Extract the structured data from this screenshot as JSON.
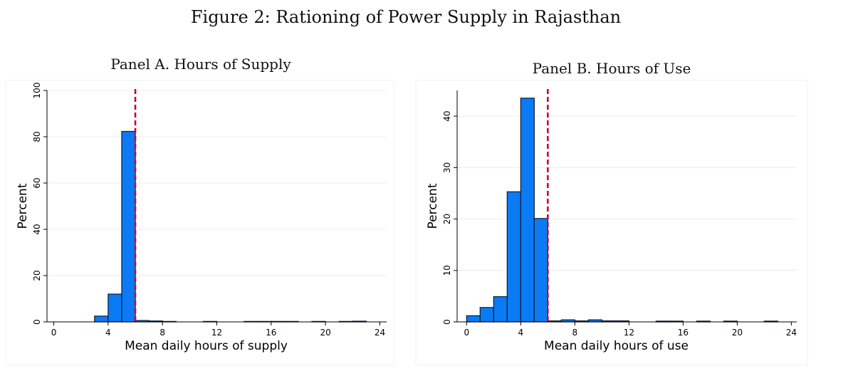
{
  "figure_title": "Figure 2: Rationing of Power Supply in Rajasthan",
  "colors": {
    "bar_fill": "#0a7bf5",
    "bar_stroke": "#0b1a33",
    "reference_line": "#cc0033",
    "grid": "#ececec"
  },
  "chart_data": [
    {
      "type": "bar",
      "title": "Panel A. Hours of Supply",
      "xlabel": "Mean daily hours of supply",
      "ylabel": "Percent",
      "xlim": [
        -0.5,
        24.5
      ],
      "ylim": [
        0,
        100
      ],
      "xticks": [
        0,
        4,
        8,
        12,
        16,
        20,
        24
      ],
      "yticks": [
        0,
        20,
        40,
        60,
        80,
        100
      ],
      "grid": true,
      "reference_line_x": 6,
      "bins": [
        {
          "x0": 3.0,
          "x1": 4.0,
          "value": 2.5
        },
        {
          "x0": 4.0,
          "x1": 5.0,
          "value": 12.0
        },
        {
          "x0": 5.0,
          "x1": 6.0,
          "value": 82.3
        },
        {
          "x0": 6.0,
          "x1": 7.0,
          "value": 0.6
        },
        {
          "x0": 7.0,
          "x1": 8.0,
          "value": 0.4
        },
        {
          "x0": 8.0,
          "x1": 9.0,
          "value": 0.2
        },
        {
          "x0": 11.0,
          "x1": 12.0,
          "value": 0.2
        },
        {
          "x0": 14.0,
          "x1": 15.0,
          "value": 0.2
        },
        {
          "x0": 15.0,
          "x1": 16.0,
          "value": 0.2
        },
        {
          "x0": 16.0,
          "x1": 17.0,
          "value": 0.2
        },
        {
          "x0": 17.0,
          "x1": 18.0,
          "value": 0.2
        },
        {
          "x0": 19.0,
          "x1": 20.0,
          "value": 0.2
        },
        {
          "x0": 21.0,
          "x1": 22.0,
          "value": 0.2
        },
        {
          "x0": 22.0,
          "x1": 23.0,
          "value": 0.3
        }
      ]
    },
    {
      "type": "bar",
      "title": "Panel B. Hours of Use",
      "xlabel": "Mean daily hours of use",
      "ylabel": "Percent",
      "xlim": [
        -0.7,
        24.4
      ],
      "ylim": [
        0,
        45
      ],
      "xticks": [
        0,
        4,
        8,
        12,
        16,
        20,
        24
      ],
      "yticks": [
        0,
        10,
        20,
        30,
        40
      ],
      "grid": true,
      "reference_line_x": 6,
      "bins": [
        {
          "x0": 0.0,
          "x1": 1.0,
          "value": 1.2
        },
        {
          "x0": 1.0,
          "x1": 2.0,
          "value": 2.8
        },
        {
          "x0": 2.0,
          "x1": 3.0,
          "value": 4.9
        },
        {
          "x0": 3.0,
          "x1": 4.0,
          "value": 25.3
        },
        {
          "x0": 4.0,
          "x1": 5.0,
          "value": 43.5
        },
        {
          "x0": 5.0,
          "x1": 6.0,
          "value": 20.1
        },
        {
          "x0": 6.0,
          "x1": 7.0,
          "value": 0.2
        },
        {
          "x0": 7.0,
          "x1": 8.0,
          "value": 0.4
        },
        {
          "x0": 8.0,
          "x1": 9.0,
          "value": 0.2
        },
        {
          "x0": 9.0,
          "x1": 10.0,
          "value": 0.4
        },
        {
          "x0": 10.0,
          "x1": 11.0,
          "value": 0.2
        },
        {
          "x0": 11.0,
          "x1": 12.0,
          "value": 0.2
        },
        {
          "x0": 14.0,
          "x1": 15.0,
          "value": 0.15
        },
        {
          "x0": 15.0,
          "x1": 16.0,
          "value": 0.15
        },
        {
          "x0": 17.0,
          "x1": 18.0,
          "value": 0.15
        },
        {
          "x0": 19.0,
          "x1": 20.0,
          "value": 0.15
        },
        {
          "x0": 22.0,
          "x1": 23.0,
          "value": 0.15
        }
      ]
    }
  ]
}
